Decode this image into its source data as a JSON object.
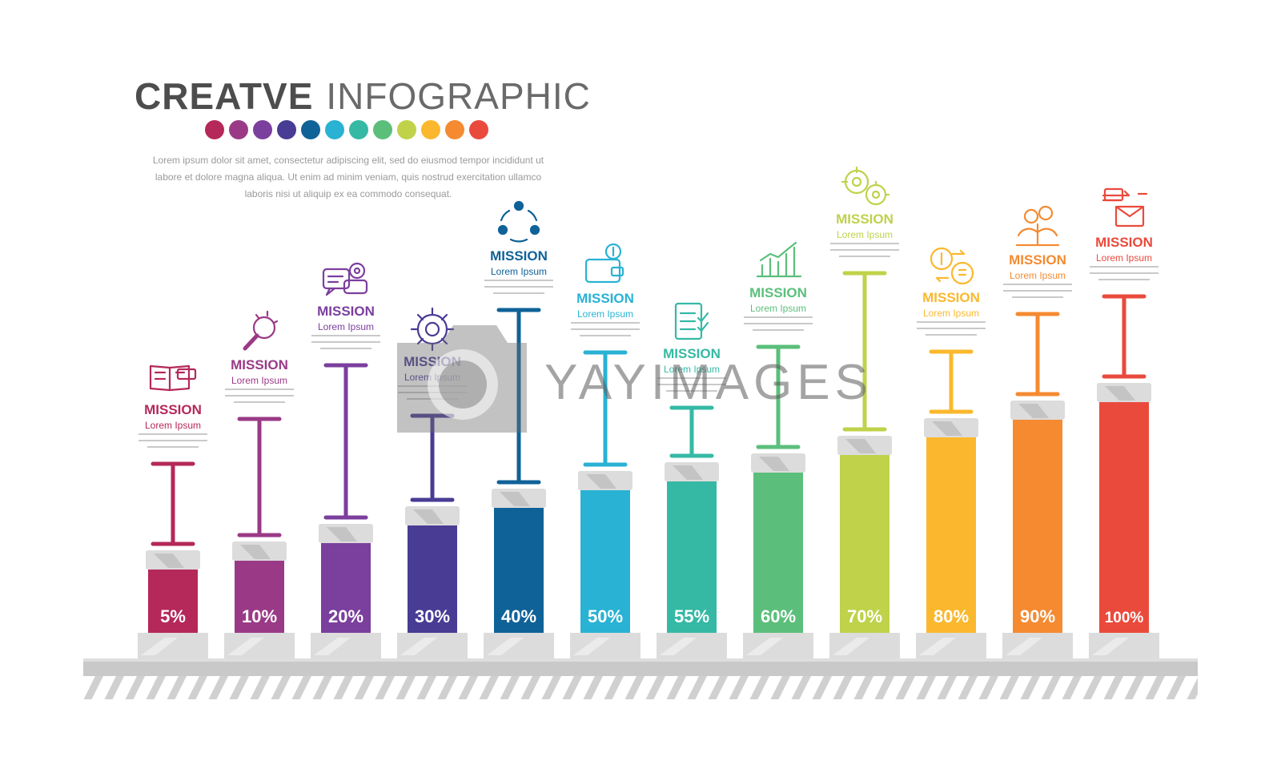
{
  "title": {
    "bold": "CREATVE",
    "light": "INFOGRAPHIC"
  },
  "palette": [
    "#b5285a",
    "#9a3a87",
    "#7b3f9d",
    "#483c94",
    "#0f6298",
    "#29b2d4",
    "#35b9a4",
    "#5bbf7b",
    "#bfd24a",
    "#fbb82e",
    "#f58a31",
    "#ea4a3c"
  ],
  "description": "Lorem ipsum dolor sit amet, consectetur adipiscing elit, sed do eiusmod tempor incididunt ut labore et dolore magna aliqua. Ut enim ad minim veniam, quis nostrud exercitation ullamco laboris nisi ut aliquip ex ea commodo consequat.",
  "chart_data": {
    "type": "bar",
    "categories": [
      "MISSION",
      "MISSION",
      "MISSION",
      "MISSION",
      "MISSION",
      "MISSION",
      "MISSION",
      "MISSION",
      "MISSION",
      "MISSION",
      "MISSION",
      "MISSION"
    ],
    "values": [
      5,
      10,
      20,
      30,
      40,
      50,
      55,
      60,
      70,
      80,
      90,
      100
    ],
    "labels": [
      "5%",
      "10%",
      "20%",
      "30%",
      "40%",
      "50%",
      "55%",
      "60%",
      "70%",
      "80%",
      "90%",
      "100%"
    ],
    "subtitle": "Lorem Ipsum",
    "icons": [
      "book-icon",
      "magnifier-icon",
      "chat-gear-icon",
      "gear-icon",
      "team-cycle-icon",
      "wallet-icon",
      "checklist-icon",
      "growth-chart-icon",
      "gears-icon",
      "currency-exchange-icon",
      "money-plant-icon",
      "mail-transfer-icon"
    ],
    "colors": [
      "#b5285a",
      "#9a3a87",
      "#7b3f9d",
      "#483c94",
      "#0f6298",
      "#29b2d4",
      "#35b9a4",
      "#5bbf7b",
      "#bfd24a",
      "#fbb82e",
      "#f58a31",
      "#ea4a3c"
    ],
    "ylim": [
      0,
      100
    ]
  },
  "watermark": "YAYIMAGES"
}
